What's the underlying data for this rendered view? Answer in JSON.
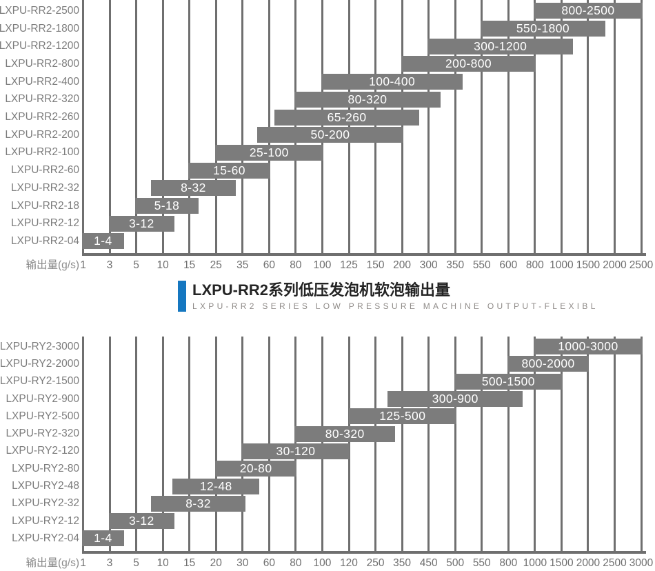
{
  "title_block": {
    "title": "LXPU-RR2系列低压发泡机软泡输出量",
    "subtitle": "LXPU-RR2 SERIES LOW PRESSURE MACHINE OUTPUT-FLEXIBL"
  },
  "colors": {
    "background": "#ffffff",
    "bar": "#7c7c7c",
    "grid": "#6f6f6f",
    "axis": "#6f6f6f",
    "bar_text": "#ffffff",
    "y_label": "#7c7c7c",
    "x_label": "#6f6f6f",
    "unit_label": "#8c8c8c",
    "title": "#242424",
    "subtitle": "#8f8b88",
    "accent": "#1577c0"
  },
  "chart_data": [
    {
      "type": "bar",
      "variant": "horizontal-range",
      "title": "LXPU-RR2系列低压发泡机软泡输出量",
      "subtitle": "LXPU-RR2 SERIES LOW PRESSURE MACHINE OUTPUT-FLEXIBL",
      "xlabel": "输出量(g/s)",
      "x_scale": "categorical-interpolated",
      "grid": true,
      "legend": "none",
      "x_ticks": [
        1,
        3,
        5,
        10,
        15,
        25,
        35,
        60,
        80,
        100,
        125,
        150,
        200,
        300,
        350,
        550,
        600,
        800,
        1000,
        1500,
        2000,
        2500
      ],
      "rows": [
        {
          "category": "LXPU-RR2-2500",
          "range": [
            800,
            2500
          ],
          "label": "800-2500"
        },
        {
          "category": "LXPU-RR2-1800",
          "range": [
            550,
            1800
          ],
          "label": "550-1800"
        },
        {
          "category": "LXPU-RR2-1200",
          "range": [
            300,
            1200
          ],
          "label": "300-1200"
        },
        {
          "category": "LXPU-RR2-800",
          "range": [
            200,
            800
          ],
          "label": "200-800"
        },
        {
          "category": "LXPU-RR2-400",
          "range": [
            100,
            400
          ],
          "label": "100-400"
        },
        {
          "category": "LXPU-RR2-320",
          "range": [
            80,
            320
          ],
          "label": "80-320"
        },
        {
          "category": "LXPU-RR2-260",
          "range": [
            65,
            260
          ],
          "label": "65-260"
        },
        {
          "category": "LXPU-RR2-200",
          "range": [
            50,
            200
          ],
          "label": "50-200"
        },
        {
          "category": "LXPU-RR2-100",
          "range": [
            25,
            100
          ],
          "label": "25-100"
        },
        {
          "category": "LXPU-RR2-60",
          "range": [
            15,
            60
          ],
          "label": "15-60"
        },
        {
          "category": "LXPU-RR2-32",
          "range": [
            8,
            32
          ],
          "label": "8-32"
        },
        {
          "category": "LXPU-RR2-18",
          "range": [
            5,
            18
          ],
          "label": "5-18"
        },
        {
          "category": "LXPU-RR2-12",
          "range": [
            3,
            12
          ],
          "label": "3-12"
        },
        {
          "category": "LXPU-RR2-04",
          "range": [
            1,
            4
          ],
          "label": "1-4"
        }
      ]
    },
    {
      "type": "bar",
      "variant": "horizontal-range",
      "title": "",
      "subtitle": "",
      "xlabel": "输出量(g/s)",
      "x_scale": "categorical-interpolated",
      "grid": true,
      "legend": "none",
      "x_ticks": [
        1,
        3,
        5,
        10,
        15,
        20,
        30,
        60,
        80,
        100,
        120,
        250,
        350,
        450,
        500,
        550,
        800,
        1000,
        1500,
        2000,
        2500,
        3000
      ],
      "rows": [
        {
          "category": "LXPU-RY2-3000",
          "range": [
            1000,
            3000
          ],
          "label": "1000-3000"
        },
        {
          "category": "LXPU-RY2-2000",
          "range": [
            800,
            2000
          ],
          "label": "800-2000"
        },
        {
          "category": "LXPU-RY2-1500",
          "range": [
            500,
            1500
          ],
          "label": "500-1500"
        },
        {
          "category": "LXPU-RY2-900",
          "range": [
            300,
            900
          ],
          "label": "300-900"
        },
        {
          "category": "LXPU-RY2-500",
          "range": [
            125,
            500
          ],
          "label": "125-500"
        },
        {
          "category": "LXPU-RY2-320",
          "range": [
            80,
            320
          ],
          "label": "80-320"
        },
        {
          "category": "LXPU-RY2-120",
          "range": [
            30,
            120
          ],
          "label": "30-120"
        },
        {
          "category": "LXPU-RY2-80",
          "range": [
            20,
            80
          ],
          "label": "20-80"
        },
        {
          "category": "LXPU-RY2-48",
          "range": [
            12,
            48
          ],
          "label": "12-48"
        },
        {
          "category": "LXPU-RY2-32",
          "range": [
            8,
            32
          ],
          "label": "8-32"
        },
        {
          "category": "LXPU-RY2-12",
          "range": [
            3,
            12
          ],
          "label": "3-12"
        },
        {
          "category": "LXPU-RY2-04",
          "range": [
            1,
            4
          ],
          "label": "1-4"
        }
      ]
    }
  ]
}
